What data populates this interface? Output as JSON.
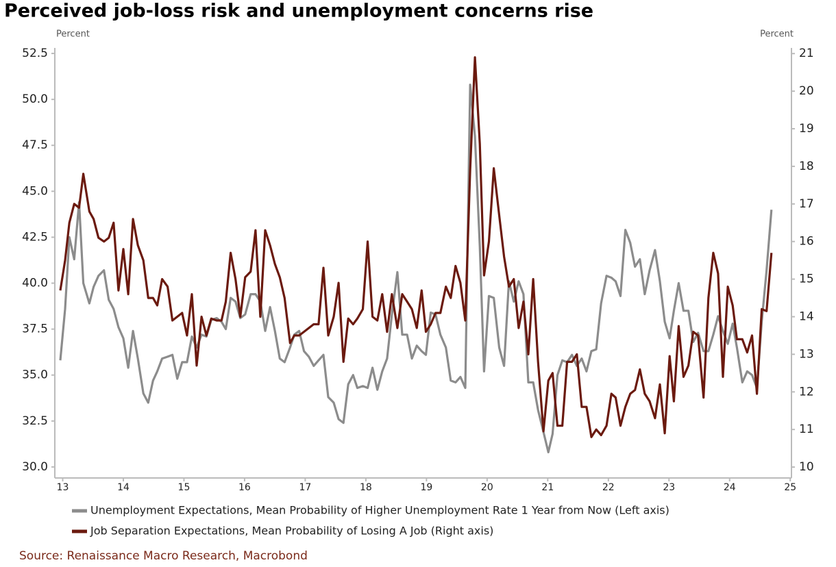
{
  "chart_data": {
    "type": "line",
    "title": "Perceived job-loss risk and unemployment concerns rise",
    "y_label": "Percent",
    "y2_label": "Percent",
    "source": "Source: Renaissance Macro Research, Macrobond",
    "xlim": [
      12.87,
      25.02
    ],
    "xticks": [
      13,
      14,
      15,
      16,
      17,
      18,
      19,
      20,
      21,
      22,
      23,
      24,
      25
    ],
    "ylim": [
      29.4,
      52.8
    ],
    "yticks": [
      {
        "value": 30,
        "label": "30.0"
      },
      32.5,
      {
        "value": 35,
        "label": "35.0"
      },
      37.5,
      {
        "value": 40,
        "label": "40.0"
      },
      42.5,
      {
        "value": 45,
        "label": "45.0"
      },
      47.5,
      {
        "value": 50,
        "label": "50.0"
      },
      52.5
    ],
    "y2lim": [
      9.71,
      21.15
    ],
    "y2ticks": [
      10,
      11,
      12,
      13,
      14,
      15,
      16,
      17,
      18,
      19,
      20,
      21
    ],
    "grid": false,
    "x": [
      12.96,
      13.04,
      13.11,
      13.19,
      13.27,
      13.34,
      13.44,
      13.51,
      13.59,
      13.68,
      13.76,
      13.84,
      13.92,
      14.0,
      14.08,
      14.16,
      14.24,
      14.33,
      14.41,
      14.49,
      14.56,
      14.64,
      14.73,
      14.81,
      14.89,
      14.97,
      15.05,
      15.13,
      15.21,
      15.29,
      15.37,
      15.45,
      15.54,
      15.62,
      15.69,
      15.77,
      15.85,
      15.93,
      16.01,
      16.1,
      16.18,
      16.26,
      16.34,
      16.42,
      16.5,
      16.58,
      16.66,
      16.75,
      16.82,
      16.9,
      16.98,
      17.06,
      17.14,
      17.22,
      17.3,
      17.38,
      17.47,
      17.55,
      17.63,
      17.71,
      17.79,
      17.86,
      17.95,
      18.03,
      18.11,
      18.19,
      18.27,
      18.35,
      18.43,
      18.52,
      18.6,
      18.68,
      18.76,
      18.84,
      18.92,
      18.99,
      19.07,
      19.15,
      19.23,
      19.32,
      19.4,
      19.48,
      19.56,
      19.64,
      19.72,
      19.8,
      19.88,
      19.95,
      20.03,
      20.11,
      20.2,
      20.28,
      20.36,
      20.44,
      20.52,
      20.6,
      20.68,
      20.76,
      20.84,
      20.93,
      21.01,
      21.08,
      21.16,
      21.24,
      21.32,
      21.4,
      21.48,
      21.56,
      21.64,
      21.72,
      21.8,
      21.88,
      21.97,
      22.05,
      22.12,
      22.2,
      22.28,
      22.36,
      22.44,
      22.52,
      22.6,
      22.68,
      22.77,
      22.85,
      22.93,
      23.01,
      23.08,
      23.16,
      23.24,
      23.32,
      23.4,
      23.48,
      23.57,
      23.65,
      23.73,
      23.81,
      23.89,
      23.97,
      24.05,
      24.12,
      24.21,
      24.29,
      24.37,
      24.45,
      24.53,
      24.61,
      24.69
    ],
    "series": [
      {
        "name": "Unemployment Expectations, Mean Probability of Higher Unemployment Rate 1 Year from Now (Left axis)",
        "color": "#8c8c8c",
        "axis": "y",
        "values": [
          35.8,
          38.6,
          42.5,
          41.3,
          44.4,
          40.0,
          38.9,
          39.8,
          40.4,
          40.7,
          39.1,
          38.6,
          37.6,
          37.0,
          35.4,
          37.4,
          35.9,
          34.0,
          33.5,
          34.7,
          35.2,
          35.9,
          36.0,
          36.1,
          34.8,
          35.7,
          35.7,
          37.1,
          36.5,
          37.2,
          37.1,
          38.0,
          38.1,
          37.9,
          37.5,
          39.2,
          39.0,
          38.1,
          38.3,
          39.4,
          39.4,
          39.0,
          37.4,
          38.7,
          37.4,
          35.9,
          35.7,
          36.5,
          37.2,
          37.4,
          36.3,
          36.0,
          35.5,
          35.8,
          36.1,
          33.8,
          33.5,
          32.6,
          32.4,
          34.5,
          35.0,
          34.3,
          34.4,
          34.3,
          35.4,
          34.2,
          35.2,
          35.9,
          38.3,
          40.6,
          37.2,
          37.2,
          35.9,
          36.6,
          36.3,
          36.1,
          38.4,
          38.3,
          37.2,
          36.5,
          34.7,
          34.6,
          34.9,
          34.3,
          50.8,
          48.0,
          42.0,
          35.2,
          39.3,
          39.2,
          36.5,
          35.5,
          40.1,
          39.0,
          40.1,
          39.4,
          34.6,
          34.6,
          33.1,
          31.9,
          30.8,
          31.8,
          35.0,
          35.8,
          35.7,
          36.1,
          35.5,
          35.9,
          35.2,
          36.3,
          36.4,
          38.9,
          40.4,
          40.3,
          40.1,
          39.3,
          42.9,
          42.2,
          40.9,
          41.3,
          39.4,
          40.7,
          41.8,
          40.1,
          37.9,
          37.0,
          38.5,
          40.0,
          38.5,
          38.5,
          36.8,
          37.3,
          36.3,
          36.3,
          37.2,
          38.2,
          37.4,
          36.7,
          37.8,
          36.5,
          34.6,
          35.2,
          35.0,
          34.3,
          37.9,
          40.7,
          44.0
        ]
      },
      {
        "name": "Job Separation Expectations, Mean Probability of Losing A Job (Right axis)",
        "color": "#6b1a0f",
        "axis": "y2",
        "values": [
          14.7,
          15.5,
          16.5,
          17.0,
          16.9,
          17.8,
          16.8,
          16.6,
          16.1,
          16.0,
          16.1,
          16.5,
          14.7,
          15.8,
          14.6,
          16.6,
          15.9,
          15.5,
          14.5,
          14.5,
          14.3,
          15.0,
          14.8,
          13.9,
          14.0,
          14.1,
          13.5,
          14.6,
          12.7,
          14.0,
          13.5,
          13.95,
          13.9,
          13.9,
          14.4,
          15.7,
          15.0,
          14.0,
          15.05,
          15.2,
          16.3,
          14.0,
          16.3,
          15.9,
          15.4,
          15.05,
          14.5,
          13.3,
          13.5,
          13.5,
          13.6,
          13.7,
          13.8,
          13.8,
          15.3,
          13.5,
          14.0,
          14.9,
          12.8,
          13.95,
          13.8,
          13.95,
          14.2,
          16.0,
          14.0,
          13.9,
          14.6,
          13.6,
          14.6,
          13.7,
          14.6,
          14.4,
          14.2,
          13.7,
          14.7,
          13.6,
          13.8,
          14.1,
          14.1,
          14.8,
          14.5,
          15.35,
          14.9,
          13.9,
          17.9,
          20.9,
          18.6,
          15.1,
          16.0,
          17.95,
          16.7,
          15.6,
          14.8,
          15.0,
          13.7,
          14.4,
          13.0,
          15.0,
          12.8,
          10.95,
          12.3,
          12.5,
          11.1,
          11.1,
          12.8,
          12.8,
          13.0,
          11.6,
          11.6,
          10.8,
          11.0,
          10.85,
          11.1,
          11.95,
          11.85,
          11.1,
          11.6,
          11.95,
          12.05,
          12.6,
          11.95,
          11.75,
          11.3,
          12.2,
          10.9,
          12.95,
          11.75,
          13.75,
          12.4,
          12.7,
          13.6,
          13.5,
          11.85,
          14.5,
          15.7,
          15.15,
          12.4,
          14.8,
          14.3,
          13.4,
          13.4,
          13.05,
          13.5,
          11.95,
          14.2,
          14.15,
          15.7
        ]
      }
    ]
  }
}
